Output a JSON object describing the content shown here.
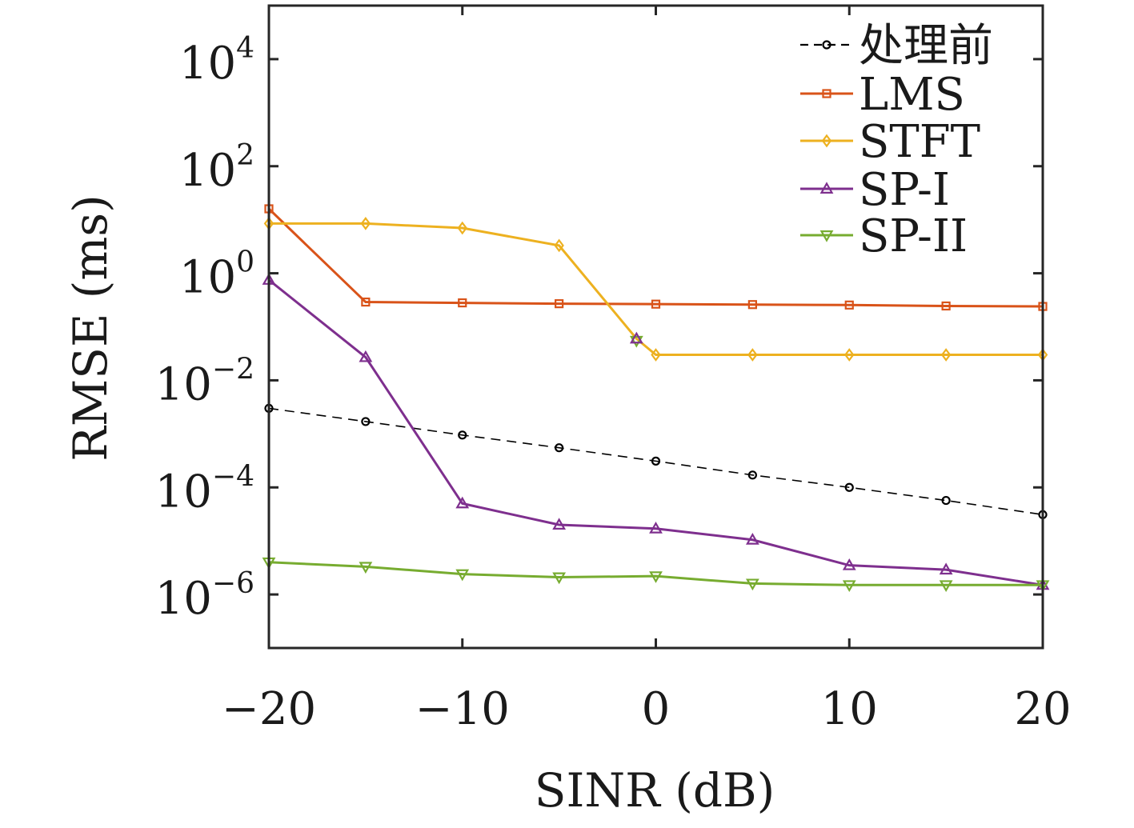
{
  "chart_data": {
    "type": "line",
    "xlabel": "SINR (dB)",
    "ylabel": "RMSE (ms)",
    "xlim": [
      -20,
      20
    ],
    "ylim_log10": [
      -7,
      5
    ],
    "yscale": "log",
    "grid": false,
    "legend_position": "top-right",
    "x_ticks": [
      -20,
      -10,
      0,
      10,
      20
    ],
    "x_tick_labels": [
      "−20",
      "−10",
      "0",
      "10",
      "20"
    ],
    "y_ticks_exponents": [
      4,
      2,
      0,
      -2,
      -4,
      -6
    ],
    "y_tick_labels": [
      {
        "base": "10",
        "exp": "4"
      },
      {
        "base": "10",
        "exp": "2"
      },
      {
        "base": "10",
        "exp": "0"
      },
      {
        "base": "10",
        "exp": "−2"
      },
      {
        "base": "10",
        "exp": "−4"
      },
      {
        "base": "10",
        "exp": "−6"
      }
    ],
    "series": [
      {
        "name": "处理前",
        "color": "#000000",
        "dash": "dashed",
        "marker": "circle",
        "x": [
          -20,
          -15,
          -10,
          -5,
          0,
          5,
          10,
          15,
          20
        ],
        "y": [
          0.003,
          0.0017,
          0.00095,
          0.00055,
          0.00031,
          0.00017,
          0.0001,
          5.7e-05,
          3.1e-05
        ]
      },
      {
        "name": "LMS",
        "color": "#D95319",
        "dash": "solid",
        "marker": "square",
        "x": [
          -20,
          -15,
          -10,
          -5,
          0,
          5,
          10,
          15,
          20
        ],
        "y": [
          16,
          0.29,
          0.28,
          0.27,
          0.265,
          0.26,
          0.255,
          0.245,
          0.24
        ]
      },
      {
        "name": "STFT",
        "color": "#EDB120",
        "dash": "solid",
        "marker": "diamond",
        "x": [
          -20,
          -15,
          -10,
          -5,
          -1,
          0,
          5,
          10,
          15,
          20
        ],
        "y": [
          8.5,
          8.5,
          7,
          3.3,
          0.06,
          0.03,
          0.03,
          0.03,
          0.03,
          0.03
        ]
      },
      {
        "name": "SP-I",
        "color": "#7E2F8E",
        "dash": "solid",
        "marker": "triangle-up",
        "x": [
          -20,
          -15,
          -10,
          -5,
          0,
          5,
          10,
          15,
          20
        ],
        "y": [
          0.75,
          0.027,
          5e-05,
          2e-05,
          1.7e-05,
          1.05e-05,
          3.5e-06,
          2.9e-06,
          1.5e-06
        ]
      },
      {
        "name": "SP-II",
        "color": "#77AC30",
        "dash": "solid",
        "marker": "triangle-down",
        "x": [
          -20,
          -15,
          -10,
          -5,
          0,
          5,
          10,
          15,
          20
        ],
        "y": [
          4e-06,
          3.3e-06,
          2.4e-06,
          2.1e-06,
          2.2e-06,
          1.6e-06,
          1.5e-06,
          1.5e-06,
          1.5e-06
        ]
      }
    ],
    "extra_markers": [
      {
        "series": "SP-II",
        "x": -1,
        "y": 0.055,
        "marker": "triangle-down"
      },
      {
        "series": "SP-I",
        "x": -1,
        "y": 0.06,
        "marker": "triangle-up"
      }
    ]
  }
}
